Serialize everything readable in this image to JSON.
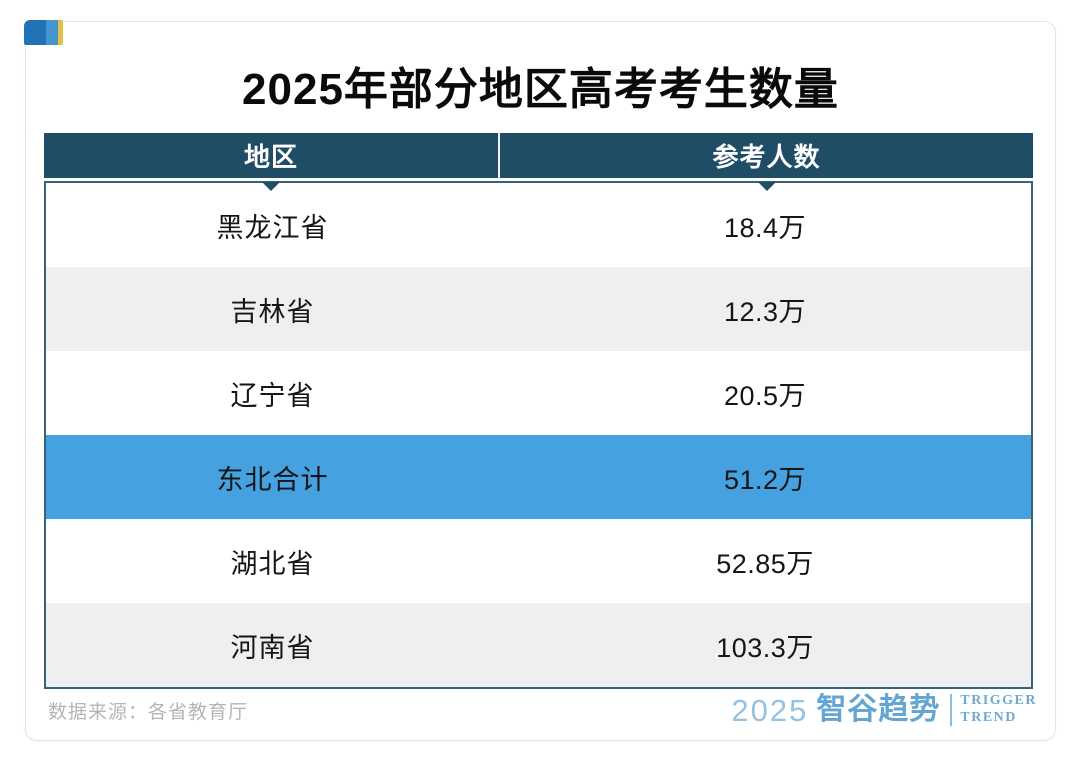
{
  "title": "2025年部分地区高考考生数量",
  "table": {
    "headers": [
      "地区",
      "参考人数"
    ],
    "rows": [
      {
        "region": "黑龙江省",
        "value": "18.4万"
      },
      {
        "region": "吉林省",
        "value": "12.3万"
      },
      {
        "region": "辽宁省",
        "value": "20.5万"
      },
      {
        "region": "东北合计",
        "value": "51.2万"
      },
      {
        "region": "湖北省",
        "value": "52.85万"
      },
      {
        "region": "河南省",
        "value": "103.3万"
      }
    ]
  },
  "footer": {
    "source": "数据来源：各省教育厅",
    "logo": {
      "year": "2025",
      "brand": "智谷趋势",
      "tagline_line1": "TRIGGER",
      "tagline_line2": "TREND"
    }
  },
  "colors": {
    "header_bg": "#1f4d66",
    "highlight_row_bg": "#45a1df",
    "alt_row_bg": "#edeff1",
    "body_border": "#3a607a",
    "mark_dark_blue": "#2173b5",
    "mark_light_blue": "#4694ce",
    "mark_yellow": "#dfc04a",
    "logo_blue": "#6ea9d4",
    "source_text_gray": "#b5b5b5"
  },
  "chart_data": {
    "type": "table",
    "title": "2025年部分地区高考考生数量",
    "columns": [
      "地区",
      "参考人数"
    ],
    "unit": "万",
    "rows": [
      [
        "黑龙江省",
        "18.4万"
      ],
      [
        "吉林省",
        "12.3万"
      ],
      [
        "辽宁省",
        "20.5万"
      ],
      [
        "东北合计",
        "51.2万"
      ],
      [
        "湖北省",
        "52.85万"
      ],
      [
        "河南省",
        "103.3万"
      ]
    ],
    "numeric_values_wan": [
      18.4,
      12.3,
      20.5,
      51.2,
      52.85,
      103.3
    ],
    "highlighted_row": "东北合计",
    "source": "数据来源：各省教育厅"
  }
}
